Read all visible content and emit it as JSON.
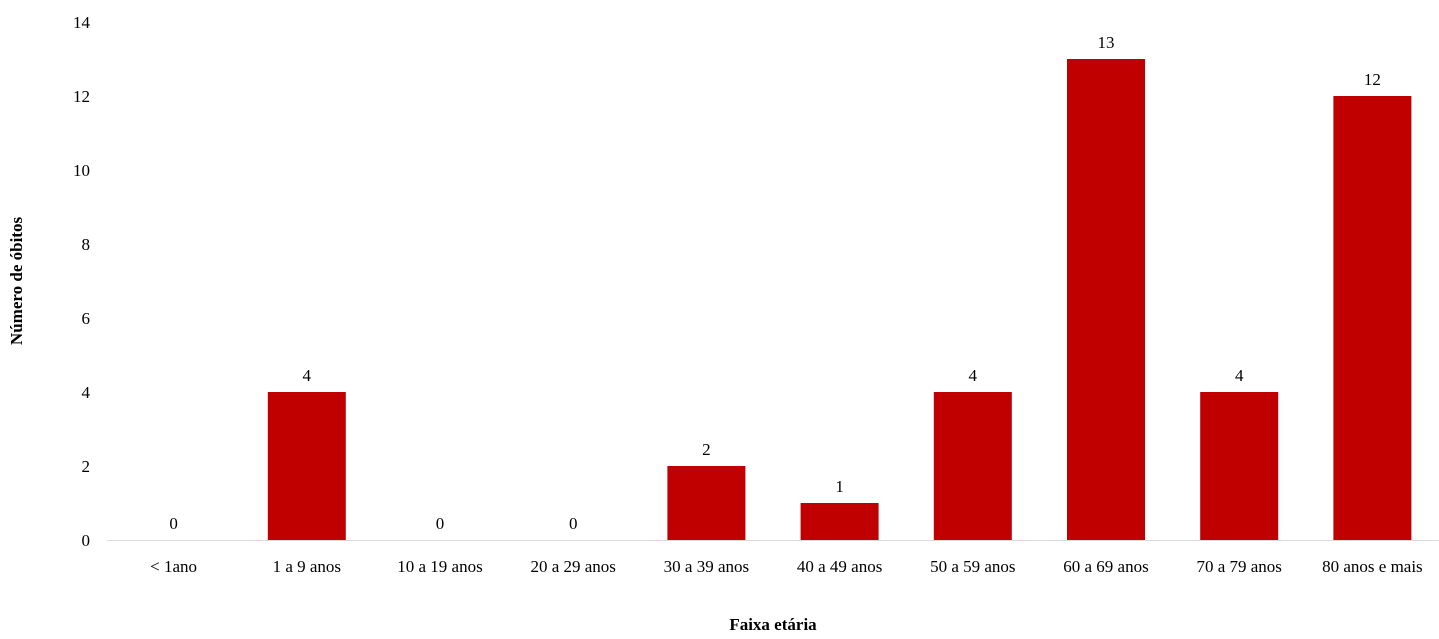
{
  "chart_data": {
    "type": "bar",
    "categories": [
      "< 1ano",
      "1 a 9 anos",
      "10 a 19 anos",
      "20 a 29 anos",
      "30 a 39 anos",
      "40 a 49 anos",
      "50 a 59 anos",
      "60 a 69 anos",
      "70 a 79 anos",
      "80 anos e mais"
    ],
    "values": [
      0,
      4,
      0,
      0,
      2,
      1,
      4,
      13,
      4,
      12
    ],
    "xlabel": "Faixa etária",
    "ylabel": "Número de óbitos",
    "ylim": [
      0,
      14
    ],
    "yticks": [
      0,
      2,
      4,
      6,
      8,
      10,
      12,
      14
    ],
    "bar_color": "#C00000",
    "axis_color": "#D9D9D9",
    "gridlines": false,
    "data_labels": true,
    "legend": "none"
  }
}
